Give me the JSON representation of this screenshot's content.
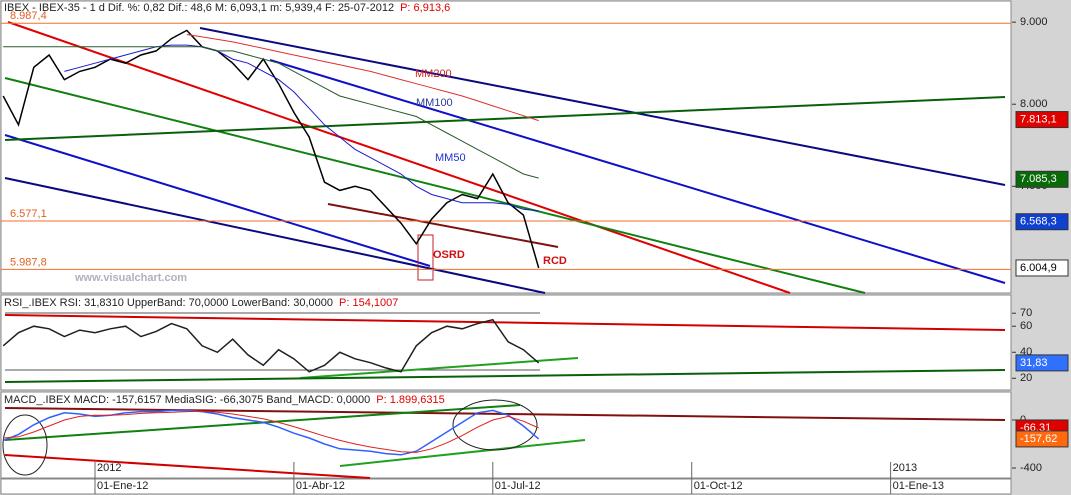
{
  "chart_data": [
    {
      "type": "line",
      "title": "IBEX - IBEX-35 - 1 d Dif. %: 0,82 Dif.: 48,6 M: 6,093,1 m: 5,939,4 F: 25-07-2012",
      "title_price": "P: 6,913,6",
      "categories": [
        null,
        null,
        null,
        null,
        null,
        null,
        "01-Ene-12",
        null,
        null,
        null,
        null,
        null,
        null,
        null,
        null,
        null,
        null,
        null,
        null,
        "01-Abr-12",
        null,
        null,
        null,
        null,
        null,
        null,
        null,
        null,
        null,
        null,
        null,
        null,
        "01-Jul-12",
        null,
        null,
        null,
        null,
        null,
        null,
        null,
        null,
        null,
        null,
        null,
        null,
        "01-Oct-12",
        null,
        null,
        null,
        null,
        null,
        null,
        null,
        null,
        null,
        null,
        null,
        null,
        "01-Ene-13",
        null,
        null,
        null,
        null,
        null,
        null
      ],
      "years": [
        null,
        null,
        null,
        null,
        null,
        null,
        "2012",
        null,
        null,
        null,
        null,
        null,
        null,
        null,
        null,
        null,
        null,
        null,
        null,
        null,
        null,
        null,
        null,
        null,
        null,
        null,
        null,
        null,
        null,
        null,
        null,
        null,
        null,
        null,
        null,
        null,
        null,
        null,
        null,
        null,
        null,
        null,
        null,
        null,
        null,
        null,
        null,
        null,
        null,
        null,
        null,
        null,
        null,
        null,
        null,
        null,
        null,
        null,
        "2013",
        null,
        null,
        null,
        null,
        null,
        null
      ],
      "ylim": [
        5700,
        9270
      ],
      "yticks": [
        {
          "value": 7000,
          "label": "7.000"
        },
        {
          "value": 8000,
          "label": "8.000"
        },
        {
          "value": 9000,
          "label": "9.000"
        }
      ],
      "grid": false,
      "series": [
        {
          "name": "IBEX-35",
          "color": "#000000",
          "values": [
            8100,
            7750,
            8450,
            8600,
            8300,
            8400,
            8450,
            8550,
            8500,
            8600,
            8650,
            8800,
            8900,
            8700,
            8650,
            8500,
            8300,
            8550,
            8250,
            7900,
            7600,
            7050,
            6950,
            7000,
            6950,
            6750,
            6550,
            6300,
            6600,
            6800,
            6900,
            6850,
            7150,
            6800,
            6650,
            6005,
            null,
            null,
            null,
            null,
            null,
            null,
            null,
            null,
            null,
            null,
            null,
            null,
            null,
            null,
            null,
            null,
            null,
            null,
            null,
            null,
            null,
            null,
            null,
            null,
            null,
            null,
            null,
            null,
            null
          ]
        },
        {
          "name": "MM50",
          "color": "#1a1acc",
          "values": [
            null,
            null,
            null,
            null,
            8400,
            8450,
            8500,
            8550,
            8600,
            8650,
            8700,
            8720,
            8720,
            8700,
            8650,
            8550,
            8500,
            8400,
            8300,
            8150,
            7950,
            7750,
            7600,
            7450,
            7350,
            7250,
            7150,
            7000,
            6900,
            6850,
            6800,
            6800,
            6800,
            6780,
            6720,
            6700,
            null,
            null,
            null,
            null,
            null,
            null,
            null,
            null,
            null,
            null,
            null,
            null,
            null,
            null,
            null,
            null,
            null,
            null,
            null,
            null,
            null,
            null,
            null,
            null,
            null,
            null,
            null,
            null,
            null
          ]
        },
        {
          "name": "MM100",
          "color": "#2a5a2a",
          "values": [
            8700,
            8700,
            8700,
            8700,
            8700,
            8700,
            8700,
            8700,
            8700,
            8700,
            8700,
            8700,
            8700,
            8700,
            8650,
            8650,
            8600,
            8550,
            8500,
            8400,
            8300,
            8200,
            8100,
            8050,
            8000,
            7950,
            7900,
            7850,
            7750,
            7650,
            7550,
            7450,
            7350,
            7250,
            7150,
            7100,
            null,
            null,
            null,
            null,
            null,
            null,
            null,
            null,
            null,
            null,
            null,
            null,
            null,
            null,
            null,
            null,
            null,
            null,
            null,
            null,
            null,
            null,
            null,
            null,
            null,
            null,
            null,
            null,
            null
          ]
        },
        {
          "name": "MM200",
          "color": "#e03030",
          "values": [
            null,
            null,
            null,
            null,
            null,
            null,
            null,
            null,
            null,
            null,
            null,
            null,
            8850,
            8820,
            8790,
            8760,
            8720,
            8680,
            8640,
            8600,
            8560,
            8520,
            8480,
            8440,
            8400,
            8350,
            8300,
            8250,
            8200,
            8150,
            8100,
            8040,
            7980,
            7920,
            7860,
            7800,
            null,
            null,
            null,
            null,
            null,
            null,
            null,
            null,
            null,
            null,
            null,
            null,
            null,
            null,
            null,
            null,
            null,
            null,
            null,
            null,
            null,
            null,
            null,
            null,
            null,
            null,
            null,
            null,
            null
          ]
        }
      ],
      "levels": [
        {
          "value": 8987.4,
          "label": "8.987,4"
        },
        {
          "value": 6577.1,
          "label": "6.577,1"
        },
        {
          "value": 5987.8,
          "label": "5.987,8"
        }
      ],
      "boxes": [
        {
          "value": 7813.1,
          "label": "7.813,1",
          "color": "#e00000"
        },
        {
          "value": 7085.3,
          "label": "7.085,3",
          "color": "#0a6a0a"
        },
        {
          "value": 6568.3,
          "label": "6.568,3",
          "color": "#1040d0"
        },
        {
          "value": 6004.9,
          "label": "6.004,9",
          "color": "#ffffff"
        }
      ],
      "annotations": [
        {
          "text": "MM200",
          "color": "#d02020"
        },
        {
          "text": "MM100",
          "color": "#2a3a9a"
        },
        {
          "text": "MM50",
          "color": "#2030d0"
        },
        {
          "text": "OSRD",
          "color": "#d01010"
        },
        {
          "text": "RCD",
          "color": "#d01010"
        },
        {
          "text": "www.visualchart.com",
          "color": "#b0b0c0"
        }
      ]
    },
    {
      "type": "line",
      "title": "RSI_.IBEX RSI: 31,8310 UpperBand: 70,0000 LowerBand: 30,0000",
      "title_price": "P: 154,1007",
      "ylim": [
        11,
        84
      ],
      "yticks": [
        20,
        40,
        60,
        70
      ],
      "grid": false,
      "series": [
        {
          "name": "RSI",
          "color": "#202020",
          "values": [
            45,
            55,
            60,
            58,
            52,
            57,
            55,
            58,
            60,
            52,
            56,
            62,
            58,
            45,
            40,
            50,
            38,
            30,
            42,
            35,
            25,
            30,
            40,
            35,
            32,
            28,
            25,
            45,
            55,
            60,
            58,
            62,
            65,
            48,
            42,
            31.83,
            null,
            null,
            null,
            null,
            null,
            null,
            null,
            null,
            null,
            null,
            null,
            null,
            null,
            null,
            null,
            null,
            null,
            null,
            null,
            null,
            null,
            null,
            null,
            null,
            null,
            null,
            null,
            null,
            null
          ]
        }
      ],
      "boxes": [
        {
          "value": 31.83,
          "label": "31,83",
          "color": "#3070ff"
        }
      ]
    },
    {
      "type": "line",
      "title": "MACD_.IBEX MACD: -157,6157 MediaSIG: -66,3075 Band_MACD: 0,0000",
      "title_price": "P: 1.899,6315",
      "ylim": [
        -483,
        233
      ],
      "yticks": [
        -400,
        0
      ],
      "grid": false,
      "series": [
        {
          "name": "MACD",
          "color": "#3060ff",
          "values": [
            -170,
            -120,
            -40,
            20,
            60,
            50,
            30,
            40,
            60,
            70,
            70,
            80,
            80,
            70,
            50,
            20,
            0,
            -20,
            -60,
            -110,
            -150,
            -200,
            -240,
            -250,
            -260,
            -280,
            -290,
            -260,
            -180,
            -100,
            -20,
            60,
            80,
            40,
            -50,
            -157.62,
            null,
            null,
            null,
            null,
            null,
            null,
            null,
            null,
            null,
            null,
            null,
            null,
            null,
            null,
            null,
            null,
            null,
            null,
            null,
            null,
            null,
            null,
            null,
            null,
            null,
            null,
            null,
            null,
            null
          ]
        },
        {
          "name": "MediaSIG",
          "color": "#e02020",
          "values": [
            -150,
            -140,
            -100,
            -50,
            0,
            30,
            40,
            40,
            45,
            55,
            60,
            65,
            70,
            72,
            65,
            50,
            30,
            10,
            -20,
            -55,
            -95,
            -135,
            -170,
            -200,
            -225,
            -245,
            -265,
            -270,
            -240,
            -190,
            -130,
            -60,
            0,
            30,
            -10,
            -66.31,
            null,
            null,
            null,
            null,
            null,
            null,
            null,
            null,
            null,
            null,
            null,
            null,
            null,
            null,
            null,
            null,
            null,
            null,
            null,
            null,
            null,
            null,
            null,
            null,
            null,
            null,
            null,
            null,
            null
          ]
        }
      ],
      "boxes": [
        {
          "value": -66.31,
          "label": "-66,31",
          "color": "#e00000"
        },
        {
          "value": -157.62,
          "label": "-157,62",
          "color": "#ff6a10"
        }
      ]
    }
  ]
}
